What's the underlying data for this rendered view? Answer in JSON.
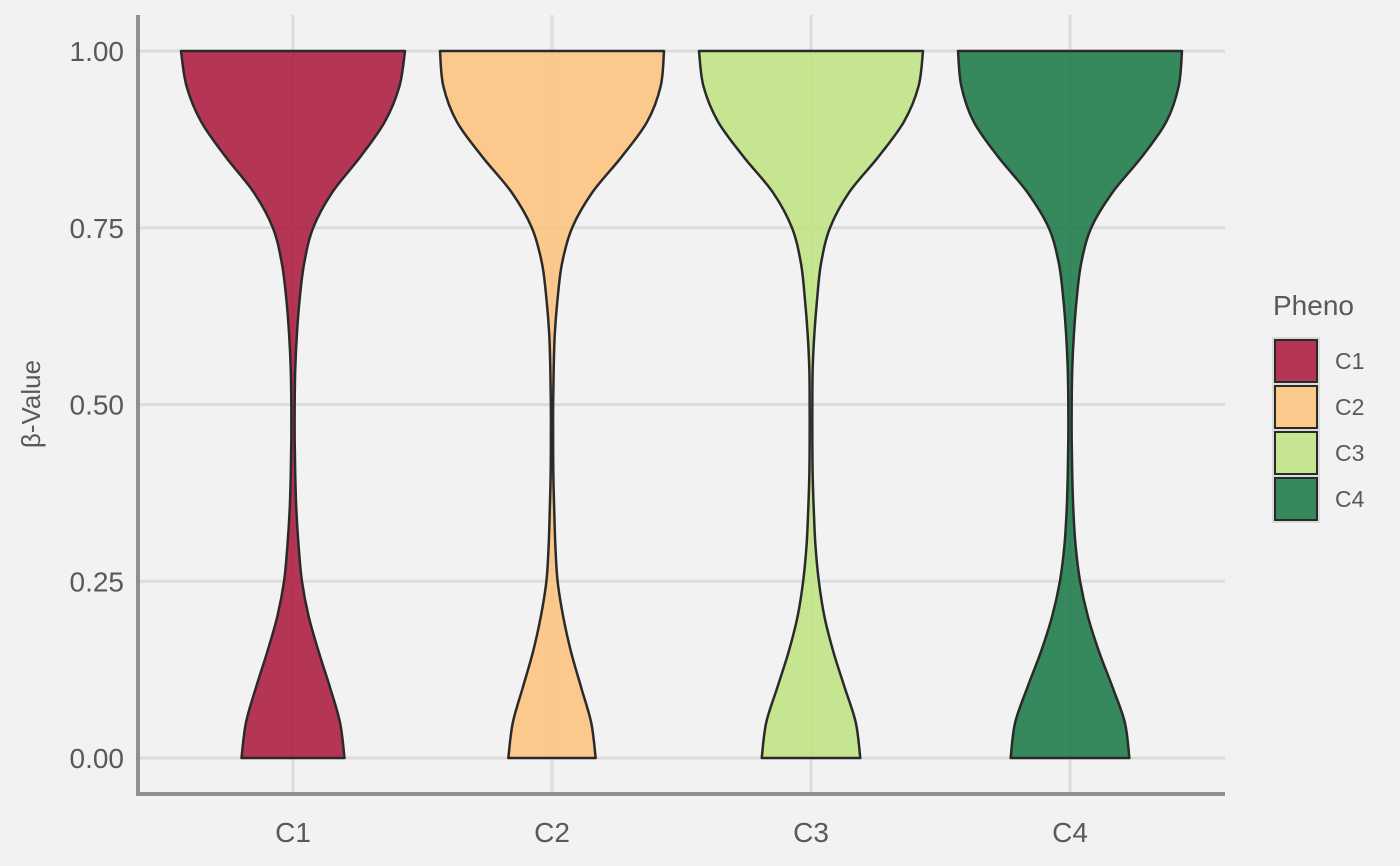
{
  "chart_data": {
    "type": "violin",
    "ylabel": "β-Value",
    "xlabel": "",
    "ylim": [
      -0.1,
      1.05
    ],
    "y_ticks": [
      "0.00",
      "0.25",
      "0.50",
      "0.75",
      "1.00"
    ],
    "categories": [
      "C1",
      "C2",
      "C3",
      "C4"
    ],
    "grid": true,
    "legend": {
      "title": "Pheno",
      "position": "right",
      "entries": [
        {
          "label": "C1",
          "color": "#ab1a3d"
        },
        {
          "label": "C2",
          "color": "#fdc37e"
        },
        {
          "label": "C3",
          "color": "#bfe382"
        },
        {
          "label": "C4",
          "color": "#1b7948"
        }
      ]
    },
    "series": [
      {
        "category": "C1",
        "color": "#ab1a3d",
        "y": [
          0.0,
          0.05,
          0.1,
          0.15,
          0.2,
          0.25,
          0.3,
          0.35,
          0.4,
          0.45,
          0.5,
          0.55,
          0.6,
          0.65,
          0.7,
          0.75,
          0.8,
          0.85,
          0.9,
          0.95,
          1.0
        ],
        "density_width": [
          0.46,
          0.42,
          0.33,
          0.23,
          0.14,
          0.08,
          0.05,
          0.03,
          0.02,
          0.015,
          0.015,
          0.02,
          0.035,
          0.06,
          0.1,
          0.18,
          0.35,
          0.6,
          0.82,
          0.95,
          1.0
        ]
      },
      {
        "category": "C2",
        "color": "#fdc37e",
        "y": [
          0.0,
          0.05,
          0.1,
          0.15,
          0.2,
          0.25,
          0.3,
          0.35,
          0.4,
          0.45,
          0.5,
          0.55,
          0.6,
          0.65,
          0.7,
          0.75,
          0.8,
          0.85,
          0.9,
          0.95,
          1.0
        ],
        "density_width": [
          0.39,
          0.35,
          0.26,
          0.17,
          0.1,
          0.05,
          0.03,
          0.02,
          0.012,
          0.01,
          0.01,
          0.015,
          0.025,
          0.05,
          0.09,
          0.18,
          0.36,
          0.62,
          0.85,
          0.97,
          1.0
        ]
      },
      {
        "category": "C3",
        "color": "#bfe382",
        "y": [
          0.0,
          0.05,
          0.1,
          0.15,
          0.2,
          0.25,
          0.3,
          0.35,
          0.4,
          0.45,
          0.5,
          0.55,
          0.6,
          0.65,
          0.7,
          0.75,
          0.8,
          0.85,
          0.9,
          0.95,
          1.0
        ],
        "density_width": [
          0.44,
          0.4,
          0.3,
          0.2,
          0.12,
          0.07,
          0.04,
          0.025,
          0.015,
          0.012,
          0.012,
          0.015,
          0.03,
          0.055,
          0.09,
          0.17,
          0.34,
          0.6,
          0.83,
          0.96,
          1.0
        ]
      },
      {
        "category": "C4",
        "color": "#1b7948",
        "y": [
          0.0,
          0.05,
          0.1,
          0.15,
          0.2,
          0.25,
          0.3,
          0.35,
          0.4,
          0.45,
          0.5,
          0.55,
          0.6,
          0.65,
          0.7,
          0.75,
          0.8,
          0.85,
          0.9,
          0.95,
          1.0
        ],
        "density_width": [
          0.53,
          0.49,
          0.38,
          0.26,
          0.16,
          0.09,
          0.05,
          0.03,
          0.02,
          0.015,
          0.015,
          0.02,
          0.035,
          0.06,
          0.1,
          0.19,
          0.38,
          0.64,
          0.86,
          0.97,
          1.0
        ]
      }
    ]
  }
}
